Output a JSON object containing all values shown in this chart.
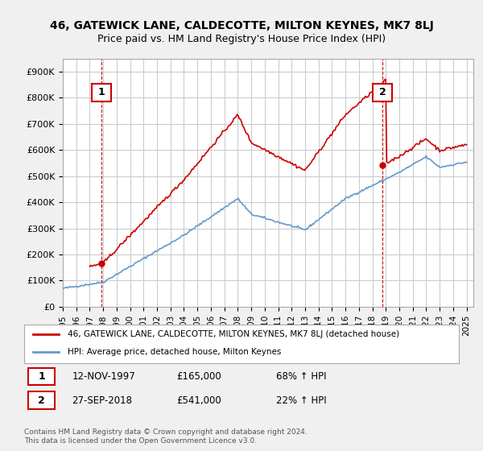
{
  "title1": "46, GATEWICK LANE, CALDECOTTE, MILTON KEYNES, MK7 8LJ",
  "title2": "Price paid vs. HM Land Registry's House Price Index (HPI)",
  "ylabel_ticks": [
    "£0",
    "£100K",
    "£200K",
    "£300K",
    "£400K",
    "£500K",
    "£600K",
    "£700K",
    "£800K",
    "£900K"
  ],
  "ytick_values": [
    0,
    100000,
    200000,
    300000,
    400000,
    500000,
    600000,
    700000,
    800000,
    900000
  ],
  "ylim": [
    0,
    950000
  ],
  "xlim_start": 1995.0,
  "xlim_end": 2025.5,
  "purchase1_x": 1997.87,
  "purchase1_y": 165000,
  "purchase1_label": "1",
  "purchase2_x": 2018.75,
  "purchase2_y": 541000,
  "purchase2_label": "2",
  "property_color": "#cc0000",
  "hpi_color": "#6699cc",
  "legend_property": "46, GATEWICK LANE, CALDECOTTE, MILTON KEYNES, MK7 8LJ (detached house)",
  "legend_hpi": "HPI: Average price, detached house, Milton Keynes",
  "note1_label": "1",
  "note1_date": "12-NOV-1997",
  "note1_price": "£165,000",
  "note1_hpi": "68% ↑ HPI",
  "note2_label": "2",
  "note2_date": "27-SEP-2018",
  "note2_price": "£541,000",
  "note2_hpi": "22% ↑ HPI",
  "copyright": "Contains HM Land Registry data © Crown copyright and database right 2024.\nThis data is licensed under the Open Government Licence v3.0.",
  "background_color": "#f0f0f0",
  "plot_bg_color": "#ffffff",
  "grid_color": "#cccccc"
}
